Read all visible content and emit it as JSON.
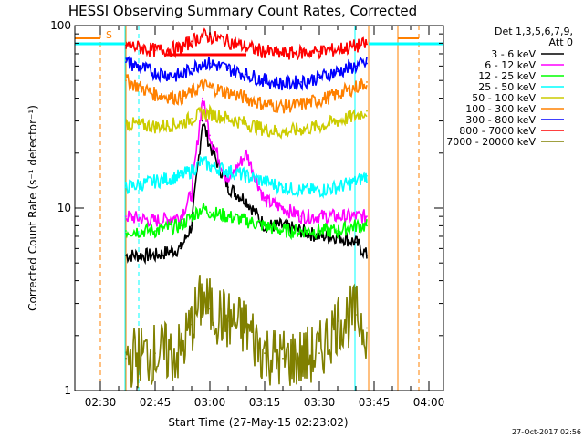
{
  "chart_data": {
    "type": "line",
    "title": "HESSI Observing Summary Count Rates, Corrected",
    "xlabel": "Start Time (27-May-15 02:23:02)",
    "ylabel": "Corrected Count Rate (s⁻¹ detector⁻¹)",
    "yscale": "log",
    "ylim": [
      1,
      100
    ],
    "xlim_minutes_after_0223": [
      0,
      101
    ],
    "x_ticks": [
      "02:30",
      "02:45",
      "03:00",
      "03:15",
      "03:30",
      "03:45",
      "04:00"
    ],
    "y_ticks": [
      "1",
      "10",
      "100"
    ],
    "legend_title": [
      "Det 1,3,5,6,7,9,",
      "Att 0"
    ],
    "legend_position": "right",
    "series": [
      {
        "name": "3 - 6 keV",
        "color": "#000000",
        "x": [
          "02:37",
          "02:45",
          "02:52",
          "02:55",
          "02:58",
          "03:00",
          "03:05",
          "03:10",
          "03:15",
          "03:20",
          "03:25",
          "03:30",
          "03:35",
          "03:40",
          "03:43"
        ],
        "y": [
          5.5,
          5.5,
          6,
          8,
          30,
          22,
          13,
          11,
          8,
          8,
          7.5,
          7,
          7,
          6.5,
          5.5
        ]
      },
      {
        "name": "6 - 12 keV",
        "color": "#ff00ff",
        "x": [
          "02:37",
          "02:45",
          "02:52",
          "02:55",
          "02:58",
          "03:00",
          "03:05",
          "03:10",
          "03:15",
          "03:20",
          "03:25",
          "03:30",
          "03:35",
          "03:40",
          "03:43"
        ],
        "y": [
          9,
          8.5,
          9,
          12,
          40,
          25,
          14,
          20,
          11,
          10,
          9,
          9,
          9,
          9,
          9
        ]
      },
      {
        "name": "12 - 25 keV",
        "color": "#00ff00",
        "x": [
          "02:37",
          "02:45",
          "02:52",
          "02:55",
          "02:58",
          "03:00",
          "03:05",
          "03:10",
          "03:15",
          "03:20",
          "03:25",
          "03:30",
          "03:35",
          "03:40",
          "03:43"
        ],
        "y": [
          7.5,
          7.5,
          8,
          9,
          10,
          9.5,
          9,
          8.5,
          8,
          7.5,
          7.5,
          7.5,
          7.5,
          8,
          8
        ]
      },
      {
        "name": "25 - 50 keV",
        "color": "#00ffff",
        "x": [
          "02:37",
          "02:45",
          "02:52",
          "02:55",
          "02:58",
          "03:00",
          "03:05",
          "03:10",
          "03:15",
          "03:20",
          "03:25",
          "03:30",
          "03:35",
          "03:40",
          "03:43"
        ],
        "y": [
          13,
          14,
          15,
          16,
          18,
          17,
          16,
          15,
          14,
          13,
          12.5,
          12.5,
          13,
          14,
          15
        ]
      },
      {
        "name": "50 - 100 keV",
        "color": "#cccc00",
        "x": [
          "02:37",
          "02:45",
          "02:52",
          "02:55",
          "02:58",
          "03:00",
          "03:05",
          "03:10",
          "03:15",
          "03:20",
          "03:25",
          "03:30",
          "03:35",
          "03:40",
          "03:43"
        ],
        "y": [
          29,
          28,
          29,
          31,
          33,
          33,
          31,
          29,
          27,
          26,
          27,
          28,
          30,
          32,
          34
        ]
      },
      {
        "name": "100 - 300 keV",
        "color": "#ff8000",
        "x": [
          "02:37",
          "02:45",
          "02:52",
          "02:55",
          "02:58",
          "03:00",
          "03:05",
          "03:10",
          "03:15",
          "03:20",
          "03:25",
          "03:30",
          "03:35",
          "03:40",
          "03:43"
        ],
        "y": [
          50,
          42,
          40,
          43,
          47,
          46,
          43,
          40,
          37,
          36,
          37,
          39,
          42,
          46,
          49
        ]
      },
      {
        "name": "300 - 800 keV",
        "color": "#0000ff",
        "x": [
          "02:37",
          "02:45",
          "02:52",
          "02:55",
          "02:58",
          "03:00",
          "03:05",
          "03:10",
          "03:15",
          "03:20",
          "03:25",
          "03:30",
          "03:35",
          "03:40",
          "03:43"
        ],
        "y": [
          63,
          55,
          53,
          58,
          63,
          62,
          58,
          54,
          50,
          48,
          49,
          52,
          56,
          60,
          62
        ]
      },
      {
        "name": "800 - 7000 keV",
        "color": "#ff0000",
        "x": [
          "02:37",
          "02:45",
          "02:52",
          "02:55",
          "02:58",
          "03:00",
          "03:05",
          "03:10",
          "03:15",
          "03:20",
          "03:25",
          "03:30",
          "03:35",
          "03:40",
          "03:43"
        ],
        "y": [
          78,
          73,
          75,
          82,
          88,
          87,
          82,
          76,
          72,
          70,
          71,
          72,
          74,
          77,
          79
        ]
      },
      {
        "name": "7000 - 20000 keV",
        "color": "#808000",
        "x": [
          "02:37",
          "02:45",
          "02:52",
          "02:55",
          "02:58",
          "03:00",
          "03:05",
          "03:10",
          "03:15",
          "03:20",
          "03:25",
          "03:30",
          "03:35",
          "03:40",
          "03:43"
        ],
        "y": [
          1.5,
          1.6,
          1.6,
          2.3,
          3.2,
          2.8,
          2.4,
          2.2,
          1.6,
          1.5,
          1.5,
          1.6,
          2.4,
          2.6,
          2.2
        ]
      }
    ],
    "annotations": [
      {
        "text": "S",
        "color": "#ff8000"
      }
    ],
    "footer_date": "27-Oct-2017 02:56"
  }
}
